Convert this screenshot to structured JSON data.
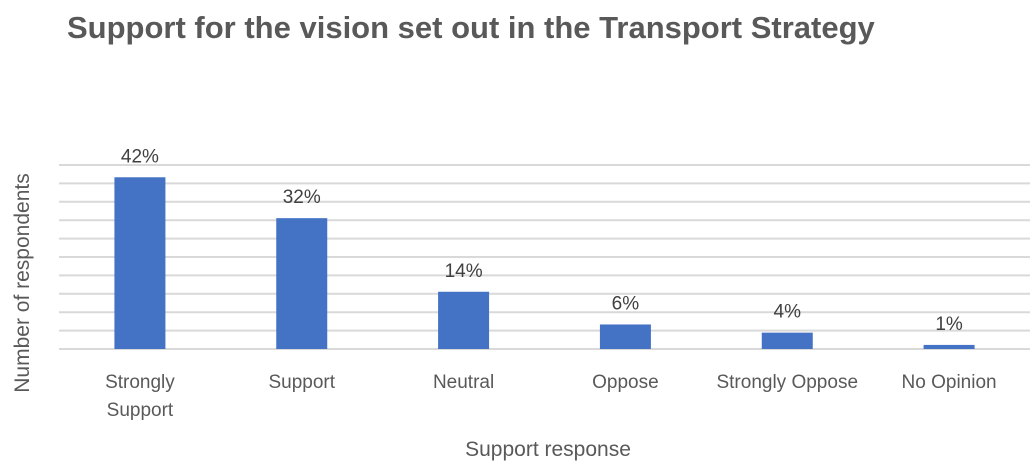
{
  "chart_data": {
    "type": "bar",
    "title": "Support for the vision set out in the Transport Strategy",
    "xlabel": "Support response",
    "ylabel": "Number of respondents",
    "categories": [
      [
        "Strongly",
        "Support"
      ],
      [
        "Support"
      ],
      [
        "Neutral"
      ],
      [
        "Oppose"
      ],
      [
        "Strongly Oppose"
      ],
      [
        "No Opinion"
      ]
    ],
    "values": [
      42,
      32,
      14,
      6,
      4,
      1
    ],
    "data_labels": [
      "42%",
      "32%",
      "14%",
      "6%",
      "4%",
      "1%"
    ],
    "ylim": [
      0,
      45
    ],
    "gridlines": true,
    "gridline_count": 10,
    "y_tick_labels_shown": false,
    "legend": "none",
    "colors": {
      "bar": "#4472c4",
      "grid": "#d9d9d9",
      "text": "#595959"
    }
  }
}
